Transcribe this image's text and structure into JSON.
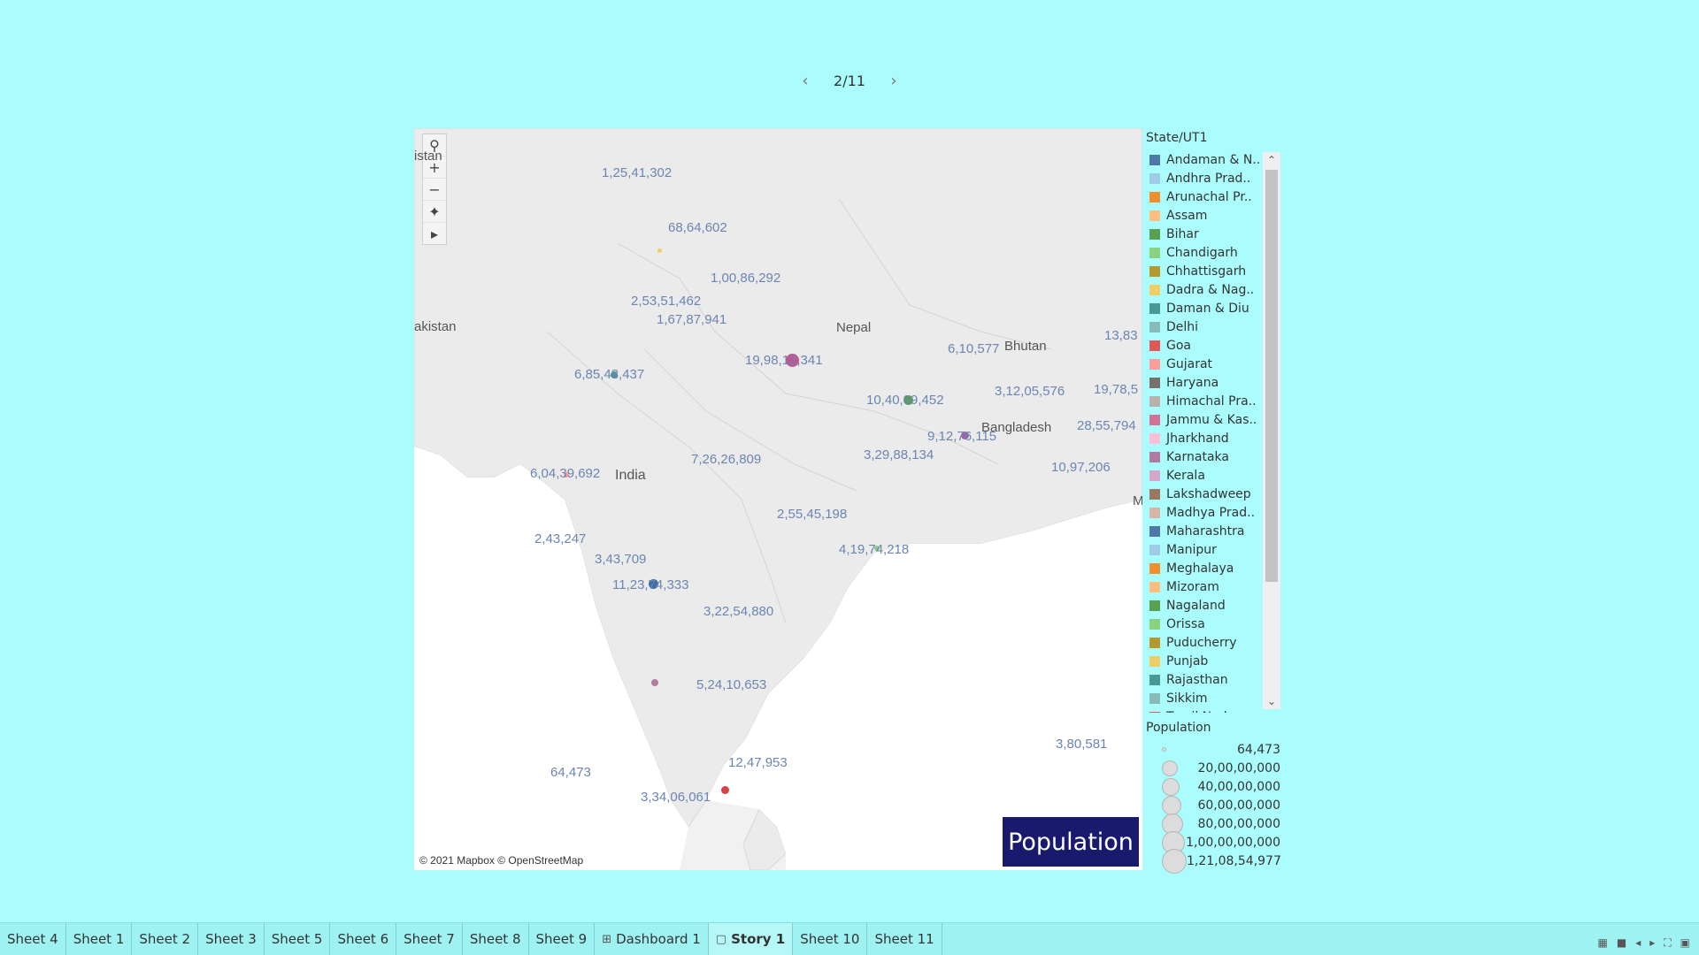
{
  "story_nav": {
    "prev_icon": "chevron-left-icon",
    "page": "2/11",
    "next_icon": "chevron-right-icon"
  },
  "map": {
    "toolbar": {
      "search": "search-icon",
      "zoom_in": "+",
      "zoom_out": "−",
      "pin": "pin-icon",
      "expand": "play-icon"
    },
    "places": {
      "pakistan": "akistan",
      "nepal": "Nepal",
      "india": "India",
      "bhutan": "Bhutan",
      "bangladesh": "Bangladesh",
      "istan": "istan",
      "m": "M"
    },
    "labels": [
      "1,25,41,302",
      "68,64,602",
      "1,00,86,292",
      "2,53,51,462",
      "1,67,87,941",
      "19,98,12,341",
      "6,85,48,437",
      "6,10,577",
      "13,83",
      "3,12,05,576",
      "19,78,5",
      "10,40,99,452",
      "9,12,76,115",
      "28,55,794",
      "3,29,88,134",
      "10,97,206",
      "7,26,26,809",
      "6,04,39,692",
      "2,55,45,198",
      "4,19,74,218",
      "2,43,247",
      "3,43,709",
      "11,23,74,333",
      "3,22,54,880",
      "5,24,10,653",
      "64,473",
      "12,47,953",
      "3,34,06,061",
      "3,80,581"
    ],
    "attribution": "© 2021 Mapbox © OpenStreetMap",
    "title_box": "Population",
    "colors": {
      "uttar_pradesh": "#c2568c",
      "bihar": "#4fa04f",
      "maharashtra": "#3d6fa6",
      "west_bengal": "#a35ea8",
      "kerala": "#d84045"
    }
  },
  "legend": {
    "title": "State/UT1",
    "items": [
      {
        "label": "Andaman & N..",
        "color": "#4e79a7"
      },
      {
        "label": "Andhra Prad..",
        "color": "#a0cbe8"
      },
      {
        "label": "Arunachal Pr..",
        "color": "#f28e2b"
      },
      {
        "label": "Assam",
        "color": "#ffbe7d"
      },
      {
        "label": "Bihar",
        "color": "#59a14f"
      },
      {
        "label": "Chandigarh",
        "color": "#8cd17d"
      },
      {
        "label": "Chhattisgarh",
        "color": "#b6992d"
      },
      {
        "label": "Dadra & Nag..",
        "color": "#f1ce63"
      },
      {
        "label": "Daman & Diu",
        "color": "#499894"
      },
      {
        "label": "Delhi",
        "color": "#86bcb6"
      },
      {
        "label": "Goa",
        "color": "#e15759"
      },
      {
        "label": "Gujarat",
        "color": "#ff9d9a"
      },
      {
        "label": "Haryana",
        "color": "#79706e"
      },
      {
        "label": "Himachal Pra..",
        "color": "#bab0ac"
      },
      {
        "label": "Jammu & Kas..",
        "color": "#d37295"
      },
      {
        "label": "Jharkhand",
        "color": "#fabfd2"
      },
      {
        "label": "Karnataka",
        "color": "#b07aa1"
      },
      {
        "label": "Kerala",
        "color": "#d4a6c8"
      },
      {
        "label": "Lakshadweep",
        "color": "#9d7660"
      },
      {
        "label": "Madhya Prad..",
        "color": "#d7b5a6"
      },
      {
        "label": "Maharashtra",
        "color": "#4e79a7"
      },
      {
        "label": "Manipur",
        "color": "#a0cbe8"
      },
      {
        "label": "Meghalaya",
        "color": "#f28e2b"
      },
      {
        "label": "Mizoram",
        "color": "#ffbe7d"
      },
      {
        "label": "Nagaland",
        "color": "#59a14f"
      },
      {
        "label": "Orissa",
        "color": "#8cd17d"
      },
      {
        "label": "Puducherry",
        "color": "#b6992d"
      },
      {
        "label": "Punjab",
        "color": "#f1ce63"
      },
      {
        "label": "Rajasthan",
        "color": "#499894"
      },
      {
        "label": "Sikkim",
        "color": "#86bcb6"
      },
      {
        "label": "Tamil Nadu",
        "color": "#e15759"
      }
    ]
  },
  "size_legend": {
    "title": "Population",
    "rows": [
      "64,473",
      "20,00,00,000",
      "40,00,00,000",
      "60,00,00,000",
      "80,00,00,000",
      "1,00,00,00,000",
      "1,21,08,54,977"
    ]
  },
  "tabs": {
    "items": [
      {
        "label": "Sheet 4"
      },
      {
        "label": "Sheet 1"
      },
      {
        "label": "Sheet 2"
      },
      {
        "label": "Sheet 3"
      },
      {
        "label": "Sheet 5"
      },
      {
        "label": "Sheet 6"
      },
      {
        "label": "Sheet 7"
      },
      {
        "label": "Sheet 8"
      },
      {
        "label": "Sheet 9"
      },
      {
        "label": "Dashboard 1",
        "icon": "grid-icon"
      },
      {
        "label": "Story 1",
        "icon": "book-icon"
      },
      {
        "label": "Sheet 10"
      },
      {
        "label": "Sheet 11"
      }
    ],
    "active": "Story 1"
  },
  "status_bar": {
    "icons": [
      "grid-view-icon",
      "single-view-icon",
      "prev-icon",
      "next-icon",
      "fullscreen-icon",
      "present-icon"
    ]
  }
}
